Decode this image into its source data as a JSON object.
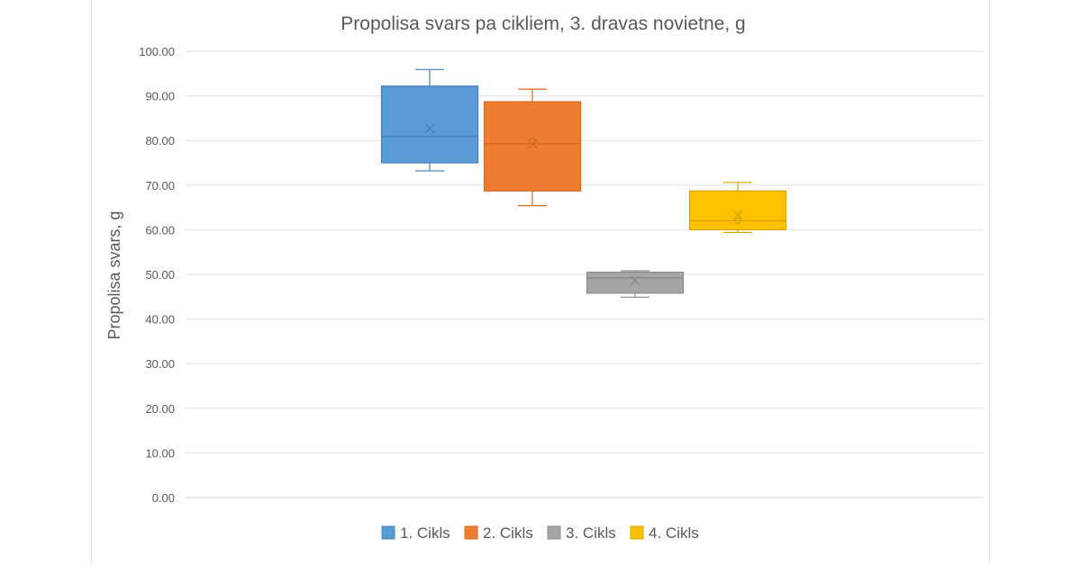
{
  "chart_data": {
    "type": "box",
    "title": "Propolisa svars pa cikliem, 3. dravas novietne, g",
    "xlabel": "",
    "ylabel": "Propolisa svars, g",
    "ylim": [
      0,
      100
    ],
    "yticks": [
      "0.00",
      "10.00",
      "20.00",
      "30.00",
      "40.00",
      "50.00",
      "60.00",
      "70.00",
      "80.00",
      "90.00",
      "100.00"
    ],
    "grid": true,
    "legend_position": "bottom",
    "series": [
      {
        "name": "1. Cikls",
        "color": "#5B9BD5",
        "whisker_color": "#4A7EBB",
        "min": 73.2,
        "q1": 75.0,
        "median": 80.9,
        "q3": 92.2,
        "max": 95.9,
        "mean": 82.7
      },
      {
        "name": "2. Cikls",
        "color": "#ED7D31",
        "whisker_color": "#D66A22",
        "min": 65.4,
        "q1": 68.7,
        "median": 79.3,
        "q3": 88.7,
        "max": 91.5,
        "mean": 79.2,
        "outliers": [
          79.9
        ]
      },
      {
        "name": "3. Cikls",
        "color": "#A5A5A5",
        "whisker_color": "#8A8A8A",
        "min": 44.9,
        "q1": 45.8,
        "median": 49.2,
        "q3": 50.5,
        "max": 50.8,
        "mean": 48.6
      },
      {
        "name": "4. Cikls",
        "color": "#FFC000",
        "whisker_color": "#D9A300",
        "min": 59.4,
        "q1": 60.0,
        "median": 62.0,
        "q3": 68.7,
        "max": 70.6,
        "mean": 63.3,
        "outliers": [
          62.0
        ]
      }
    ]
  }
}
